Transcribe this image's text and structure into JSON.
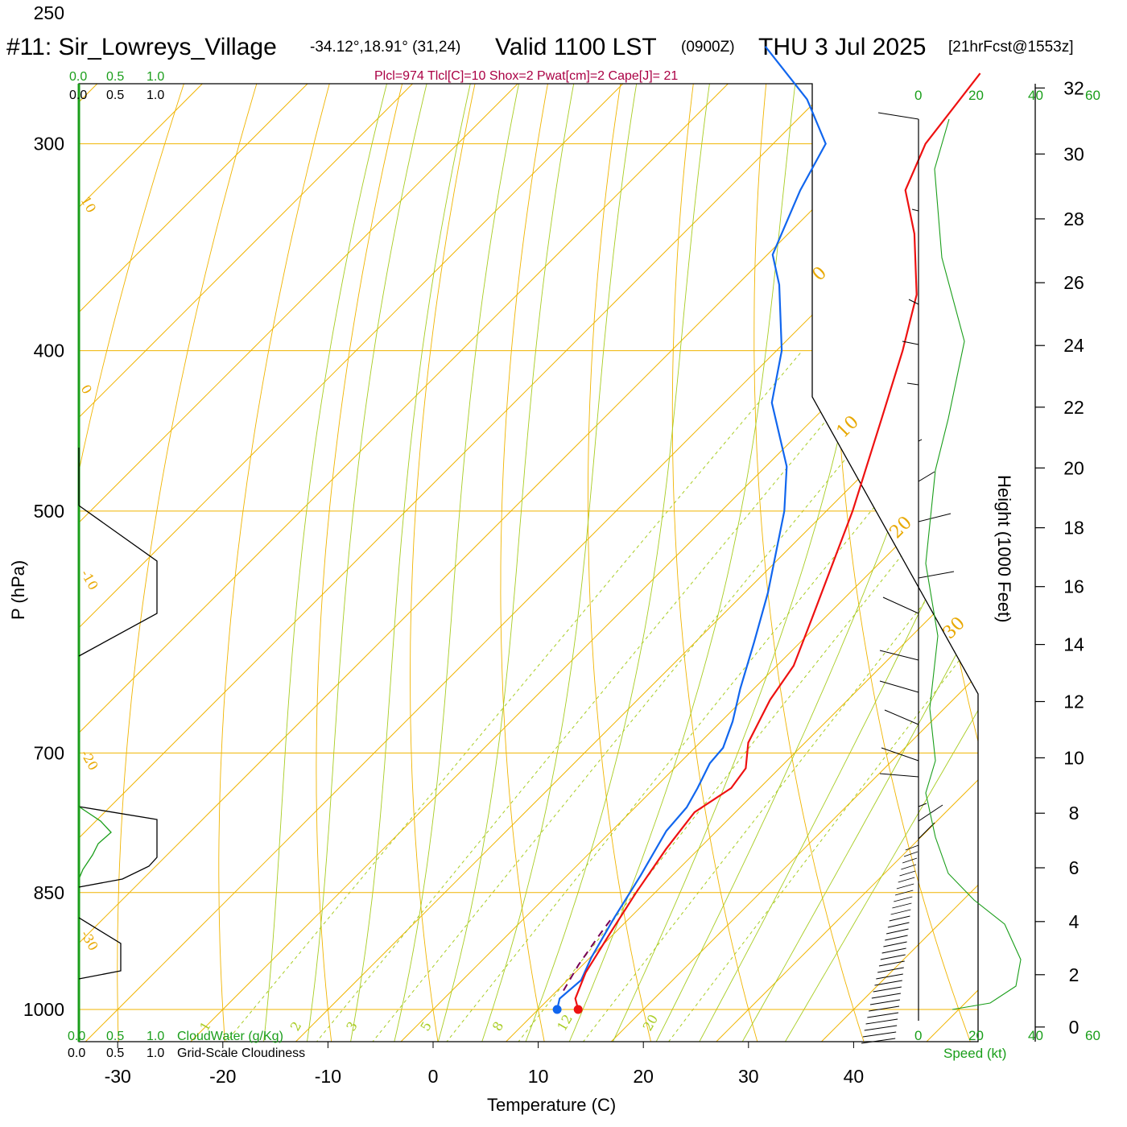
{
  "title": {
    "station": "#11: Sir_Lowreys_Village",
    "coords": "-34.12°,18.91° (31,24)",
    "valid": "Valid 1100 LST",
    "zulu": "(0900Z)",
    "date": "THU 3 Jul 2025",
    "forecast": "[21hrFcst@1553z]"
  },
  "subtitle": "Plcl=974 Tlcl[C]=10 Shox=2 Pwat[cm]=2 Cape[J]= 21",
  "axes": {
    "ylabel": "P (hPa)",
    "xlabel": "Temperature (C)",
    "height_label": "Height (1000 Feet)",
    "speed_label": "Speed (kt)",
    "cloudwater_label": "CloudWater (g/Kg)",
    "cloudiness_label": "Grid-Scale Cloudiness"
  },
  "scale_labels": {
    "cloud_ticks": [
      "0.0",
      "0.5",
      "1.0"
    ],
    "speed_ticks": [
      "0",
      "20",
      "40",
      "60"
    ]
  },
  "colors": {
    "isotherm": "#f0b400",
    "dry_adiabat": "#f0b400",
    "moist_adiabat": "#a8cc22",
    "mixing_ratio": "#a8cc22",
    "temperature": "#ee1111",
    "dewpoint": "#1166ee",
    "parcel": "#770055",
    "cloudwater": "#1a9e1a",
    "speed": "#1a9e1a"
  },
  "chart_data": {
    "type": "skew-t",
    "pressure_levels": [
      250,
      300,
      400,
      500,
      700,
      850,
      1000
    ],
    "temperature_ticks": [
      -30,
      -20,
      -10,
      0,
      10,
      20,
      30,
      40
    ],
    "height_ticks_kft": [
      0,
      2,
      4,
      6,
      8,
      10,
      12,
      14,
      16,
      18,
      20,
      22,
      24,
      26,
      28,
      30,
      32
    ],
    "isotherm_labels": [
      "10",
      "0",
      "-10",
      "-20",
      "-30",
      "0",
      "10",
      "20",
      "30"
    ],
    "mixing_ratio_labels": [
      "1",
      "2",
      "3",
      "5",
      "8",
      "12",
      "20"
    ],
    "temperature_profile": [
      {
        "p": 1000,
        "t": 13.8
      },
      {
        "p": 985,
        "t": 12.5
      },
      {
        "p": 950,
        "t": 11.0
      },
      {
        "p": 900,
        "t": 9.6
      },
      {
        "p": 850,
        "t": 8.2
      },
      {
        "p": 800,
        "t": 6.9
      },
      {
        "p": 760,
        "t": 6.1
      },
      {
        "p": 735,
        "t": 7.3
      },
      {
        "p": 715,
        "t": 6.8
      },
      {
        "p": 690,
        "t": 4.6
      },
      {
        "p": 650,
        "t": 2.6
      },
      {
        "p": 620,
        "t": 1.6
      },
      {
        "p": 580,
        "t": -1.2
      },
      {
        "p": 500,
        "t": -7.5
      },
      {
        "p": 440,
        "t": -13.5
      },
      {
        "p": 400,
        "t": -18.0
      },
      {
        "p": 370,
        "t": -22.0
      },
      {
        "p": 340,
        "t": -28.0
      },
      {
        "p": 320,
        "t": -33.0
      },
      {
        "p": 300,
        "t": -35.5
      },
      {
        "p": 272,
        "t": -37.0
      }
    ],
    "dewpoint_profile": [
      {
        "p": 1000,
        "t": 11.8
      },
      {
        "p": 985,
        "t": 11.0
      },
      {
        "p": 960,
        "t": 11.3
      },
      {
        "p": 930,
        "t": 10.1
      },
      {
        "p": 880,
        "t": 8.5
      },
      {
        "p": 830,
        "t": 7.0
      },
      {
        "p": 780,
        "t": 5.2
      },
      {
        "p": 755,
        "t": 4.9
      },
      {
        "p": 735,
        "t": 4.1
      },
      {
        "p": 710,
        "t": 2.9
      },
      {
        "p": 695,
        "t": 2.7
      },
      {
        "p": 670,
        "t": 1.1
      },
      {
        "p": 640,
        "t": -1.3
      },
      {
        "p": 600,
        "t": -4.4
      },
      {
        "p": 560,
        "t": -7.8
      },
      {
        "p": 500,
        "t": -14.0
      },
      {
        "p": 470,
        "t": -18.0
      },
      {
        "p": 430,
        "t": -25.5
      },
      {
        "p": 400,
        "t": -29.5
      },
      {
        "p": 365,
        "t": -36.0
      },
      {
        "p": 350,
        "t": -39.5
      },
      {
        "p": 320,
        "t": -43.0
      },
      {
        "p": 300,
        "t": -45.0
      },
      {
        "p": 282,
        "t": -51.0
      },
      {
        "p": 262,
        "t": -60.0
      }
    ],
    "parcel_profile": [
      {
        "p": 974,
        "t": 10.6
      },
      {
        "p": 940,
        "t": 9.6
      },
      {
        "p": 900,
        "t": 8.7
      },
      {
        "p": 880,
        "t": 8.3
      }
    ],
    "surface_temperature_point": {
      "p": 1000,
      "t": 13.8
    },
    "surface_dewpoint_point": {
      "p": 1000,
      "t": 11.8
    }
  }
}
